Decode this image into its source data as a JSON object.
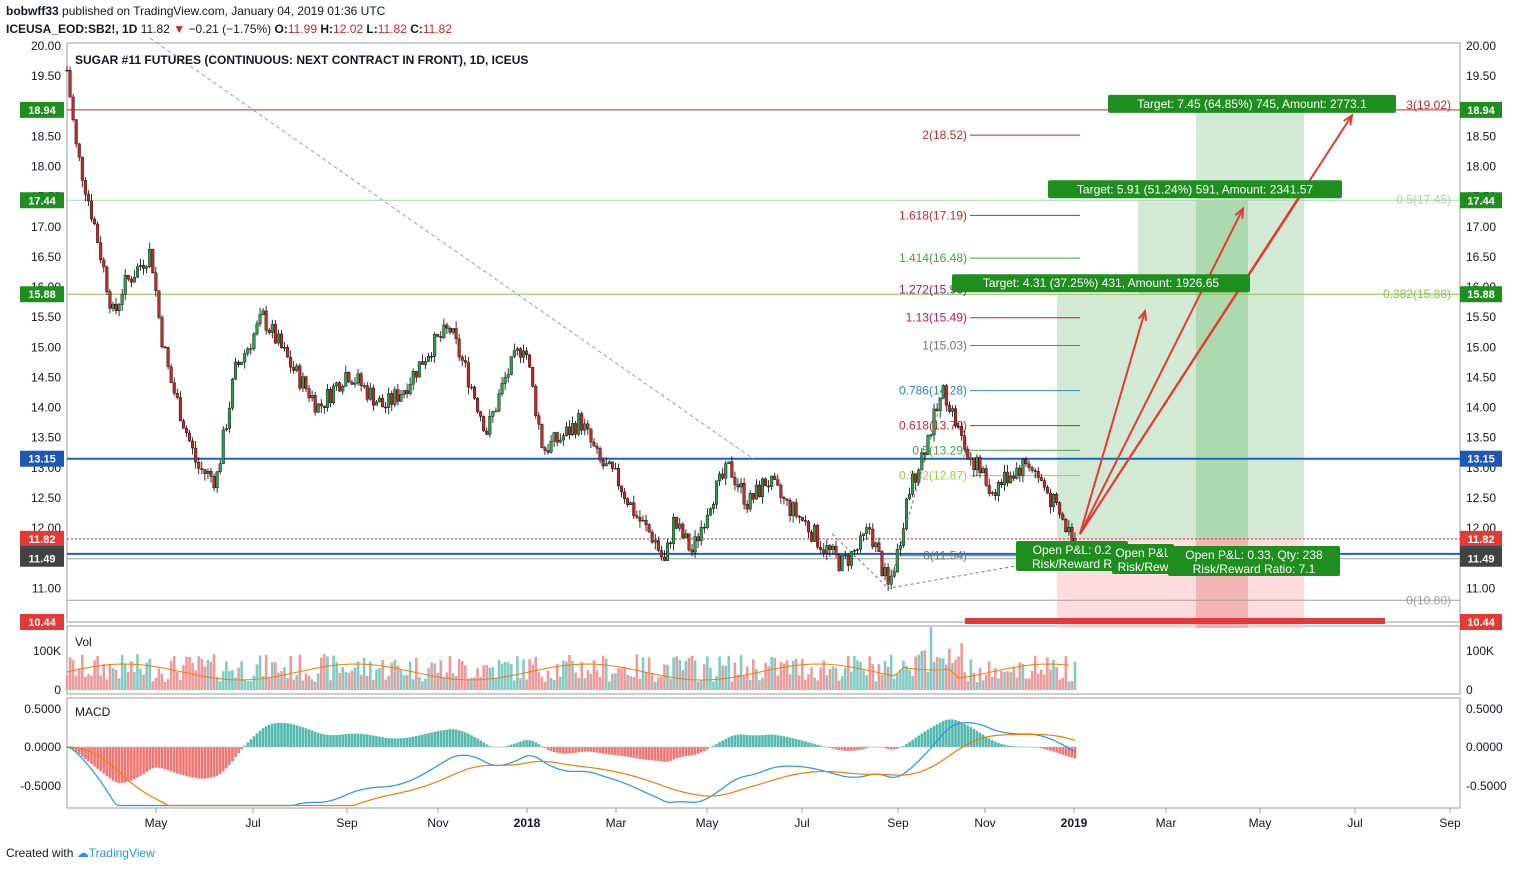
{
  "header": {
    "user": "bobwff33",
    "published": "published on TradingView.com, January 04, 2019 01:36 UTC",
    "symbol": "ICEUSA_EOD:SB2!",
    "interval": ", 1D",
    "last": "11.82",
    "change": "−0.21 (−1.75%)",
    "o_label": "O:",
    "o": "11.99",
    "h_label": "H:",
    "h": "12.02",
    "l_label": "L:",
    "l": "11.82",
    "c_label": "C:",
    "c": "11.82"
  },
  "footer": {
    "created": "Created with",
    "brand": "TradingView"
  },
  "chart_data": {
    "type": "candlestick",
    "title": "SUGAR #11 FUTURES (CONTINUOUS: NEXT CONTRACT IN FRONT), 1D, ICEUS",
    "x_ticks": [
      "May",
      "Jul",
      "Sep",
      "Nov",
      "2018",
      "Mar",
      "May",
      "Jul",
      "Sep",
      "Nov",
      "2019",
      "Mar",
      "May",
      "Jul",
      "Sep"
    ],
    "y_ticks": [
      "20.00",
      "19.50",
      "19.00",
      "18.50",
      "18.00",
      "17.50",
      "17.00",
      "16.50",
      "16.00",
      "15.50",
      "15.00",
      "14.50",
      "14.00",
      "13.50",
      "13.00",
      "12.50",
      "12.00",
      "11.50",
      "11.00",
      "10.50"
    ],
    "y_range": [
      10.44,
      20.05
    ],
    "price_path": [
      [
        0,
        19.6
      ],
      [
        1,
        18.3
      ],
      [
        3,
        17.0
      ],
      [
        5,
        15.5
      ],
      [
        6,
        16.0
      ],
      [
        9,
        16.6
      ],
      [
        10,
        15.3
      ],
      [
        11,
        14.5
      ],
      [
        12,
        14.0
      ],
      [
        14,
        13.0
      ],
      [
        16,
        12.8
      ],
      [
        18,
        14.6
      ],
      [
        21,
        15.5
      ],
      [
        24,
        14.7
      ],
      [
        27,
        14.0
      ],
      [
        30,
        14.6
      ],
      [
        34,
        14.0
      ],
      [
        36,
        14.3
      ],
      [
        39,
        15.0
      ],
      [
        41,
        15.3
      ],
      [
        43,
        14.5
      ],
      [
        45,
        13.6
      ],
      [
        47,
        14.5
      ],
      [
        49,
        15.1
      ],
      [
        51,
        13.3
      ],
      [
        53,
        13.5
      ],
      [
        55,
        13.8
      ],
      [
        57,
        13.1
      ],
      [
        59,
        12.8
      ],
      [
        61,
        12.2
      ],
      [
        63,
        11.8
      ],
      [
        64,
        11.4
      ],
      [
        65,
        12.1
      ],
      [
        67,
        11.6
      ],
      [
        69,
        12.5
      ],
      [
        71,
        13.0
      ],
      [
        73,
        12.4
      ],
      [
        75,
        12.8
      ],
      [
        77,
        12.4
      ],
      [
        79,
        12.1
      ],
      [
        81,
        11.7
      ],
      [
        83,
        11.4
      ],
      [
        85,
        11.7
      ],
      [
        86,
        12.0
      ],
      [
        87,
        11.5
      ],
      [
        88,
        11.0
      ],
      [
        89,
        11.6
      ],
      [
        90,
        12.5
      ],
      [
        92,
        13.4
      ],
      [
        94,
        14.3
      ],
      [
        96,
        13.4
      ],
      [
        98,
        12.9
      ],
      [
        99,
        12.6
      ],
      [
        101,
        12.9
      ],
      [
        103,
        13.1
      ],
      [
        105,
        12.6
      ],
      [
        106,
        12.3
      ],
      [
        107,
        12.0
      ],
      [
        108,
        11.82
      ]
    ],
    "series": [
      {
        "name": "Vol",
        "y_ticks": [
          "100K",
          "0"
        ]
      },
      {
        "name": "MACD",
        "y_ticks": [
          "0.5000",
          "0.0000",
          "-0.5000"
        ]
      }
    ],
    "horizontal_lines": [
      {
        "label": "18.94",
        "value": 18.94,
        "color": "#c62828"
      },
      {
        "label": "17.44",
        "value": 17.44,
        "color": "#a5d6a7"
      },
      {
        "label": "15.88",
        "value": 15.88,
        "color": "#8bc34a"
      },
      {
        "label": "13.15",
        "value": 13.15,
        "color": "#1565c0"
      },
      {
        "label": "11.82",
        "value": 11.82,
        "color": "#c62828"
      },
      {
        "label": "11.57",
        "value": 11.57,
        "color": "#1565c0"
      },
      {
        "label": "11.49",
        "value": 11.49,
        "color": "#9e9e9e"
      }
    ],
    "axis_tags": [
      {
        "label": "18.94",
        "value": 18.94,
        "color": "#1e8e1e"
      },
      {
        "label": "17.44",
        "value": 17.44,
        "color": "#1e8e1e"
      },
      {
        "label": "15.88",
        "value": 15.88,
        "color": "#1e8e1e"
      },
      {
        "label": "13.15",
        "value": 13.15,
        "color": "#1e56b5"
      },
      {
        "label": "11.82",
        "value": 11.82,
        "color": "#e53935"
      },
      {
        "label": "11.57",
        "value": 11.57,
        "color": "#424242"
      },
      {
        "label": "11.55",
        "value": 11.55,
        "color": "#1e56b5"
      },
      {
        "label": "11.53",
        "value": 11.53,
        "color": "#424242"
      },
      {
        "label": "11.49",
        "value": 11.49,
        "color": "#424242"
      },
      {
        "label": "10.44",
        "value": 10.44,
        "color": "#e53935"
      }
    ],
    "fib_extension": [
      {
        "label": "2(18.52)",
        "value": 18.52,
        "color": "#c62828"
      },
      {
        "label": "1.618(17.19)",
        "value": 17.19,
        "color": "#c62828"
      },
      {
        "label": "1.414(16.48)",
        "value": 16.48,
        "color": "#43a047"
      },
      {
        "label": "1.272(15.96)",
        "value": 15.96,
        "color": "#7b1fa2"
      },
      {
        "label": "1.13(15.49)",
        "value": 15.49,
        "color": "#c2185b"
      },
      {
        "label": "1(15.03)",
        "value": 15.03,
        "color": "#757575"
      },
      {
        "label": "0.786(14.28)",
        "value": 14.28,
        "color": "#2e86c1"
      },
      {
        "label": "0.618(13.70)",
        "value": 13.7,
        "color": "#c62828"
      },
      {
        "label": "0.5(13.29)",
        "value": 13.29,
        "color": "#43a047"
      },
      {
        "label": "0.382(12.87)",
        "value": 12.87,
        "color": "#9ccc3c"
      },
      {
        "label": "0(11.54)",
        "value": 11.54,
        "color": "#757575"
      }
    ],
    "fib_retracement": [
      {
        "label": "3(19.02)",
        "value": 19.02,
        "color": "#c62828"
      },
      {
        "label": "0.5(17.45)",
        "value": 17.45,
        "color": "#a5d6a7"
      },
      {
        "label": "0.382(15.88)",
        "value": 15.88,
        "color": "#8bc34a"
      },
      {
        "label": "0(10.80)",
        "value": 10.8,
        "color": "#9e9e9e"
      }
    ],
    "annotations": [
      {
        "name": "target-1",
        "text": "Target: 4.31 (37.25%) 431, Amount: 1926.65",
        "value": 15.88
      },
      {
        "name": "target-2",
        "text": "Target: 5.91 (51.24%) 591, Amount: 2341.57",
        "value": 17.44
      },
      {
        "name": "target-3",
        "text": "Target: 7.45 (64.85%) 745, Amount: 2773.1",
        "value": 18.94
      },
      {
        "name": "pnl-1a",
        "text": "Open P&L: 0.2",
        "value": 11.55
      },
      {
        "name": "pnl-1b",
        "text": "Risk/Reward R",
        "value": 11.55
      },
      {
        "name": "pnl-2a",
        "text": "Open P&L",
        "value": 11.55
      },
      {
        "name": "pnl-2b",
        "text": "Risk/Rew",
        "value": 11.55
      },
      {
        "name": "pnl-3a",
        "text": "Open P&L: 0.33, Qty: 238",
        "value": 11.55
      },
      {
        "name": "pnl-3b",
        "text": "Risk/Reward Ratio: 7.1",
        "value": 11.55
      }
    ]
  }
}
